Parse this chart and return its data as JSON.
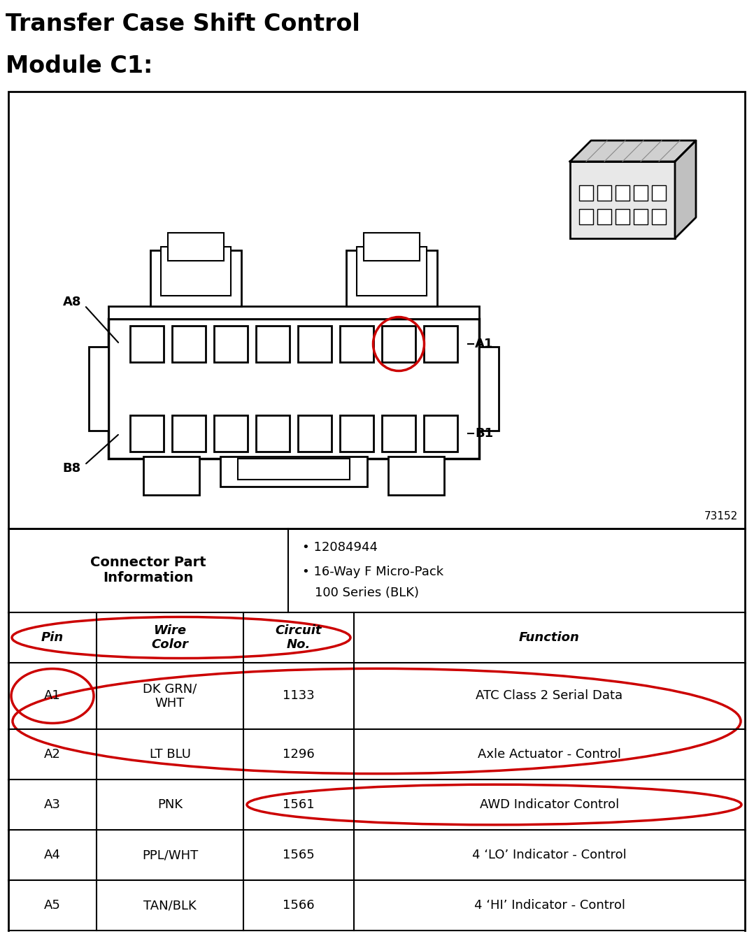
{
  "title_line1": "Transfer Case Shift Control",
  "title_line2": "Module C1:",
  "background_color": "#ffffff",
  "diagram_bg": "#ffffff",
  "border_color": "#000000",
  "diagram_number": "73152",
  "connector_info_left": "Connector Part\nInformation",
  "connector_info_right_line1": "• 12084944",
  "connector_info_right_line2": "• 16-Way F Micro-Pack",
  "connector_info_right_line3": "  100 Series (BLK)",
  "table_headers": [
    "Pin",
    "Wire\nColor",
    "Circuit\nNo.",
    "Function"
  ],
  "table_rows": [
    [
      "A1",
      "DK GRN/\nWHT",
      "1133",
      "ATC Class 2 Serial Data"
    ],
    [
      "A2",
      "LT BLU",
      "1296",
      "Axle Actuator - Control"
    ],
    [
      "A3",
      "PNK",
      "1561",
      "AWD Indicator Control"
    ],
    [
      "A4",
      "PPL/WHT",
      "1565",
      "4 ‘LO’ Indicator - Control"
    ],
    [
      "A5",
      "TAN/BLK",
      "1566",
      "4 ‘HI’ Indicator - Control"
    ]
  ],
  "circle_color": "#cc0000",
  "label_color": "#000000",
  "fig_width": 10.78,
  "fig_height": 13.46,
  "dpi": 100
}
